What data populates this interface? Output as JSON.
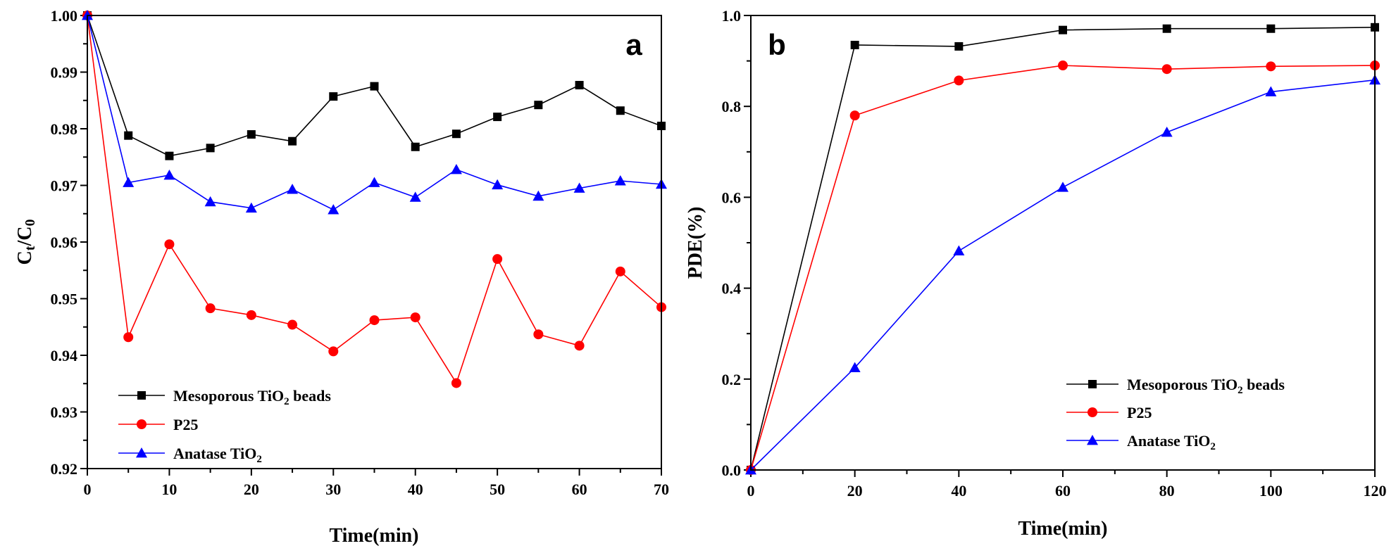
{
  "chart_data": [
    {
      "type": "line",
      "panel_label": "a",
      "xlabel": "Time(min)",
      "ylabel": {
        "main": "C",
        "sub1": "t",
        "mid": "/C",
        "sub2": "0"
      },
      "xlim": [
        0,
        70
      ],
      "ylim": [
        0.92,
        1.0
      ],
      "xticks": [
        0,
        10,
        20,
        30,
        40,
        50,
        60,
        70
      ],
      "yticks": [
        0.92,
        0.93,
        0.94,
        0.95,
        0.96,
        0.97,
        0.98,
        0.99,
        1.0
      ],
      "xtick_labels": [
        "0",
        "10",
        "20",
        "30",
        "40",
        "50",
        "60",
        "70"
      ],
      "ytick_labels": [
        "0.92",
        "0.93",
        "0.94",
        "0.95",
        "0.96",
        "0.97",
        "0.98",
        "0.99",
        "1.00"
      ],
      "legend_position": "bottom-left",
      "series": [
        {
          "name": "Mesoporous TiO2 beads",
          "legend": {
            "pre": "Mesoporous TiO",
            "sub": "2",
            "post": " beads"
          },
          "color": "#000000",
          "marker": "square",
          "x": [
            0,
            5,
            10,
            15,
            20,
            25,
            30,
            35,
            40,
            45,
            50,
            55,
            60,
            65,
            70
          ],
          "values": [
            1.0,
            0.9788,
            0.9752,
            0.9766,
            0.979,
            0.9778,
            0.9857,
            0.9875,
            0.9768,
            0.9791,
            0.9821,
            0.9842,
            0.9877,
            0.9832,
            0.9805
          ]
        },
        {
          "name": "P25",
          "legend": {
            "pre": "P25",
            "sub": "",
            "post": ""
          },
          "color": "#ff0000",
          "marker": "circle",
          "x": [
            0,
            5,
            10,
            15,
            20,
            25,
            30,
            35,
            40,
            45,
            50,
            55,
            60,
            65,
            70
          ],
          "values": [
            1.0,
            0.9432,
            0.9596,
            0.9483,
            0.9471,
            0.9454,
            0.9407,
            0.9462,
            0.9467,
            0.9351,
            0.957,
            0.9437,
            0.9417,
            0.9548,
            0.9485
          ]
        },
        {
          "name": "Anatase TiO2",
          "legend": {
            "pre": "Anatase TiO",
            "sub": "2",
            "post": ""
          },
          "color": "#0000ff",
          "marker": "triangle",
          "x": [
            0,
            5,
            10,
            15,
            20,
            25,
            30,
            35,
            40,
            45,
            50,
            55,
            60,
            65,
            70
          ],
          "values": [
            1.0,
            0.9705,
            0.9718,
            0.9671,
            0.966,
            0.9693,
            0.9657,
            0.9705,
            0.9679,
            0.9728,
            0.9701,
            0.9681,
            0.9695,
            0.9708,
            0.9702
          ]
        }
      ]
    },
    {
      "type": "line",
      "panel_label": "b",
      "xlabel": "Time(min)",
      "ylabel": {
        "main": "PDE(%)"
      },
      "xlim": [
        0,
        120
      ],
      "ylim": [
        0.0,
        1.0
      ],
      "xticks": [
        0,
        20,
        40,
        60,
        80,
        100,
        120
      ],
      "yticks": [
        0.0,
        0.2,
        0.4,
        0.6,
        0.8,
        1.0
      ],
      "xtick_labels": [
        "0",
        "20",
        "40",
        "60",
        "80",
        "100",
        "120"
      ],
      "ytick_labels": [
        "0.0",
        "0.2",
        "0.4",
        "0.6",
        "0.8",
        "1.0"
      ],
      "legend_position": "bottom-right",
      "series": [
        {
          "name": "Mesoporous TiO2 beads",
          "legend": {
            "pre": "Mesoporous TiO",
            "sub": "2",
            "post": " beads"
          },
          "color": "#000000",
          "marker": "square",
          "x": [
            0,
            20,
            40,
            60,
            80,
            100,
            120
          ],
          "values": [
            0.0,
            0.935,
            0.932,
            0.968,
            0.971,
            0.971,
            0.974
          ]
        },
        {
          "name": "P25",
          "legend": {
            "pre": "P25",
            "sub": "",
            "post": ""
          },
          "color": "#ff0000",
          "marker": "circle",
          "x": [
            0,
            20,
            40,
            60,
            80,
            100,
            120
          ],
          "values": [
            0.0,
            0.78,
            0.857,
            0.89,
            0.882,
            0.888,
            0.89
          ]
        },
        {
          "name": "Anatase TiO2",
          "legend": {
            "pre": "Anatase TiO",
            "sub": "2",
            "post": ""
          },
          "color": "#0000ff",
          "marker": "triangle",
          "x": [
            0,
            20,
            40,
            60,
            80,
            100,
            120
          ],
          "values": [
            0.0,
            0.225,
            0.482,
            0.622,
            0.743,
            0.832,
            0.858
          ]
        }
      ]
    }
  ]
}
